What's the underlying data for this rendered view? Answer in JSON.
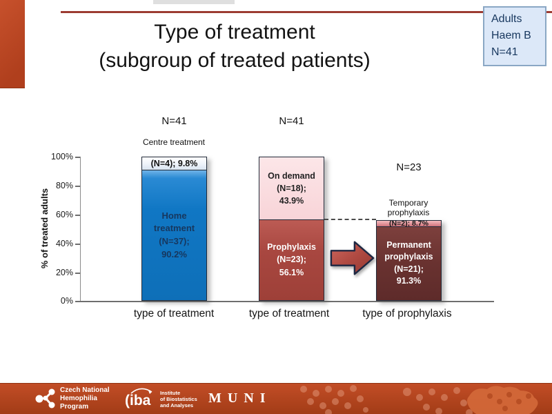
{
  "slide": {
    "title_line1": "Type of treatment",
    "title_line2": "(subgroup of treated patients)",
    "badge_lines": [
      "Adults",
      "Haem B",
      "N=41"
    ]
  },
  "chart_data": {
    "type": "bar",
    "stacked": true,
    "title": "Type of treatment (subgroup of treated patients)",
    "ylabel": "% of treated adults",
    "ylim": [
      0,
      100
    ],
    "yticks": [
      "100%",
      "80%",
      "60%",
      "40%",
      "20%",
      "0%"
    ],
    "legend": "none",
    "groups": [
      {
        "n_label": "N=41",
        "x_label": "type of treatment",
        "total_axis_pct": 100,
        "segments": [
          {
            "name": "Centre treatment",
            "outside_label": "Centre treatment",
            "label": "(N=4); 9.8%",
            "n": 4,
            "pct": 9.8,
            "color": "#e9f0f8"
          },
          {
            "name": "Home treatment",
            "label": "Home treatment (N=37); 90.2%",
            "n": 37,
            "pct": 90.2,
            "color": "#1077c4"
          }
        ]
      },
      {
        "n_label": "N=41",
        "x_label": "type of treatment",
        "total_axis_pct": 100,
        "segments": [
          {
            "name": "On demand",
            "label": "On demand (N=18); 43.9%",
            "n": 18,
            "pct": 43.9,
            "color": "#f9d8db"
          },
          {
            "name": "Prophylaxis",
            "label": "Prophylaxis (N=23); 56.1%",
            "n": 23,
            "pct": 56.1,
            "color": "#a84740"
          }
        ]
      },
      {
        "n_label": "N=23",
        "x_label": "type of prophylaxis",
        "total_axis_pct": 56.1,
        "segments": [
          {
            "name": "Temporary prophylaxis",
            "outside_label": "Temporary prophylaxis",
            "label": "(N=2); 8.7%",
            "n": 2,
            "pct": 8.7,
            "color": "#e2949a"
          },
          {
            "name": "Permanent prophylaxis",
            "label": "Permanent prophylaxis (N=21); 91.3%",
            "n": 21,
            "pct": 91.3,
            "color": "#693230"
          }
        ]
      }
    ],
    "annotations": {
      "arrow": "prophylaxis-to-prophylaxis-type",
      "dashed_link_level_pct": 56.1
    },
    "colors": {
      "accent_red": "#b03f1d",
      "top_rule": "#9c3b31",
      "badge_bg": "#dce8f8",
      "badge_border": "#8aa7c4",
      "badge_text": "#17375e"
    }
  },
  "footer": {
    "cnhp_lines": [
      "Czech National",
      "Hemophilia",
      "Program"
    ],
    "iba_name": "(iba",
    "iba_lines": [
      "Institute",
      "of Biostatistics",
      "and Analyses"
    ],
    "muni": "MUNI"
  }
}
